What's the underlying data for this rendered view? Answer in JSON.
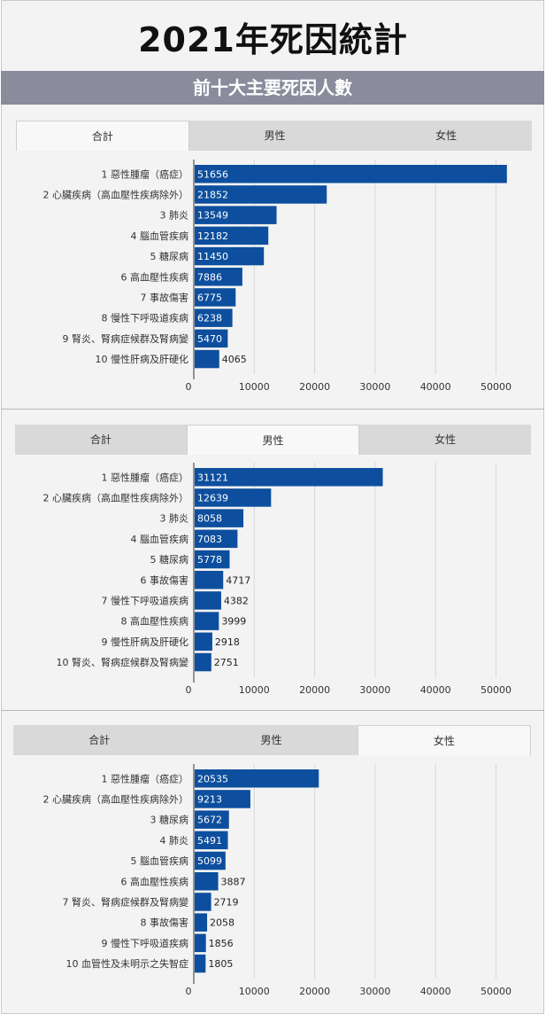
{
  "page": {
    "title": "2021年死因統計",
    "banner": "前十大主要死因人數"
  },
  "colors": {
    "bar": "#0d4f9e",
    "grid": "#d6d6d6",
    "banner": "#8a8c9c"
  },
  "tabs": [
    "合計",
    "男性",
    "女性"
  ],
  "chart_data": [
    {
      "type": "bar",
      "orientation": "horizontal",
      "active_tab": "合計",
      "categories": [
        "1 惡性腫瘤（癌症）",
        "2 心臟疾病（高血壓性疾病除外）",
        "3 肺炎",
        "4 腦血管疾病",
        "5 糖尿病",
        "6 高血壓性疾病",
        "7 事故傷害",
        "8 慢性下呼吸道疾病",
        "9 腎炎、腎病症候群及腎病變",
        "10 慢性肝病及肝硬化"
      ],
      "values": [
        51656,
        21852,
        13549,
        12182,
        11450,
        7886,
        6775,
        6238,
        5470,
        4065
      ],
      "xticks": [
        0,
        10000,
        20000,
        30000,
        40000,
        50000
      ],
      "xlim": [
        0,
        52000
      ]
    },
    {
      "type": "bar",
      "orientation": "horizontal",
      "active_tab": "男性",
      "categories": [
        "1 惡性腫瘤（癌症）",
        "2 心臟疾病（高血壓性疾病除外）",
        "3 肺炎",
        "4 腦血管疾病",
        "5 糖尿病",
        "6 事故傷害",
        "7 慢性下呼吸道疾病",
        "8 高血壓性疾病",
        "9 慢性肝病及肝硬化",
        "10 腎炎、腎病症候群及腎病變"
      ],
      "values": [
        31121,
        12639,
        8058,
        7083,
        5778,
        4717,
        4382,
        3999,
        2918,
        2751
      ],
      "xticks": [
        0,
        10000,
        20000,
        30000,
        40000,
        50000
      ],
      "xlim": [
        0,
        52000
      ]
    },
    {
      "type": "bar",
      "orientation": "horizontal",
      "active_tab": "女性",
      "categories": [
        "1 惡性腫瘤（癌症）",
        "2 心臟疾病（高血壓性疾病除外）",
        "3 糖尿病",
        "4 肺炎",
        "5 腦血管疾病",
        "6 高血壓性疾病",
        "7 腎炎、腎病症候群及腎病變",
        "8 事故傷害",
        "9 慢性下呼吸道疾病",
        "10 血管性及未明示之失智症"
      ],
      "values": [
        20535,
        9213,
        5672,
        5491,
        5099,
        3887,
        2719,
        2058,
        1856,
        1805
      ],
      "xticks": [
        0,
        10000,
        20000,
        30000,
        40000,
        50000
      ],
      "xlim": [
        0,
        52000
      ]
    }
  ]
}
